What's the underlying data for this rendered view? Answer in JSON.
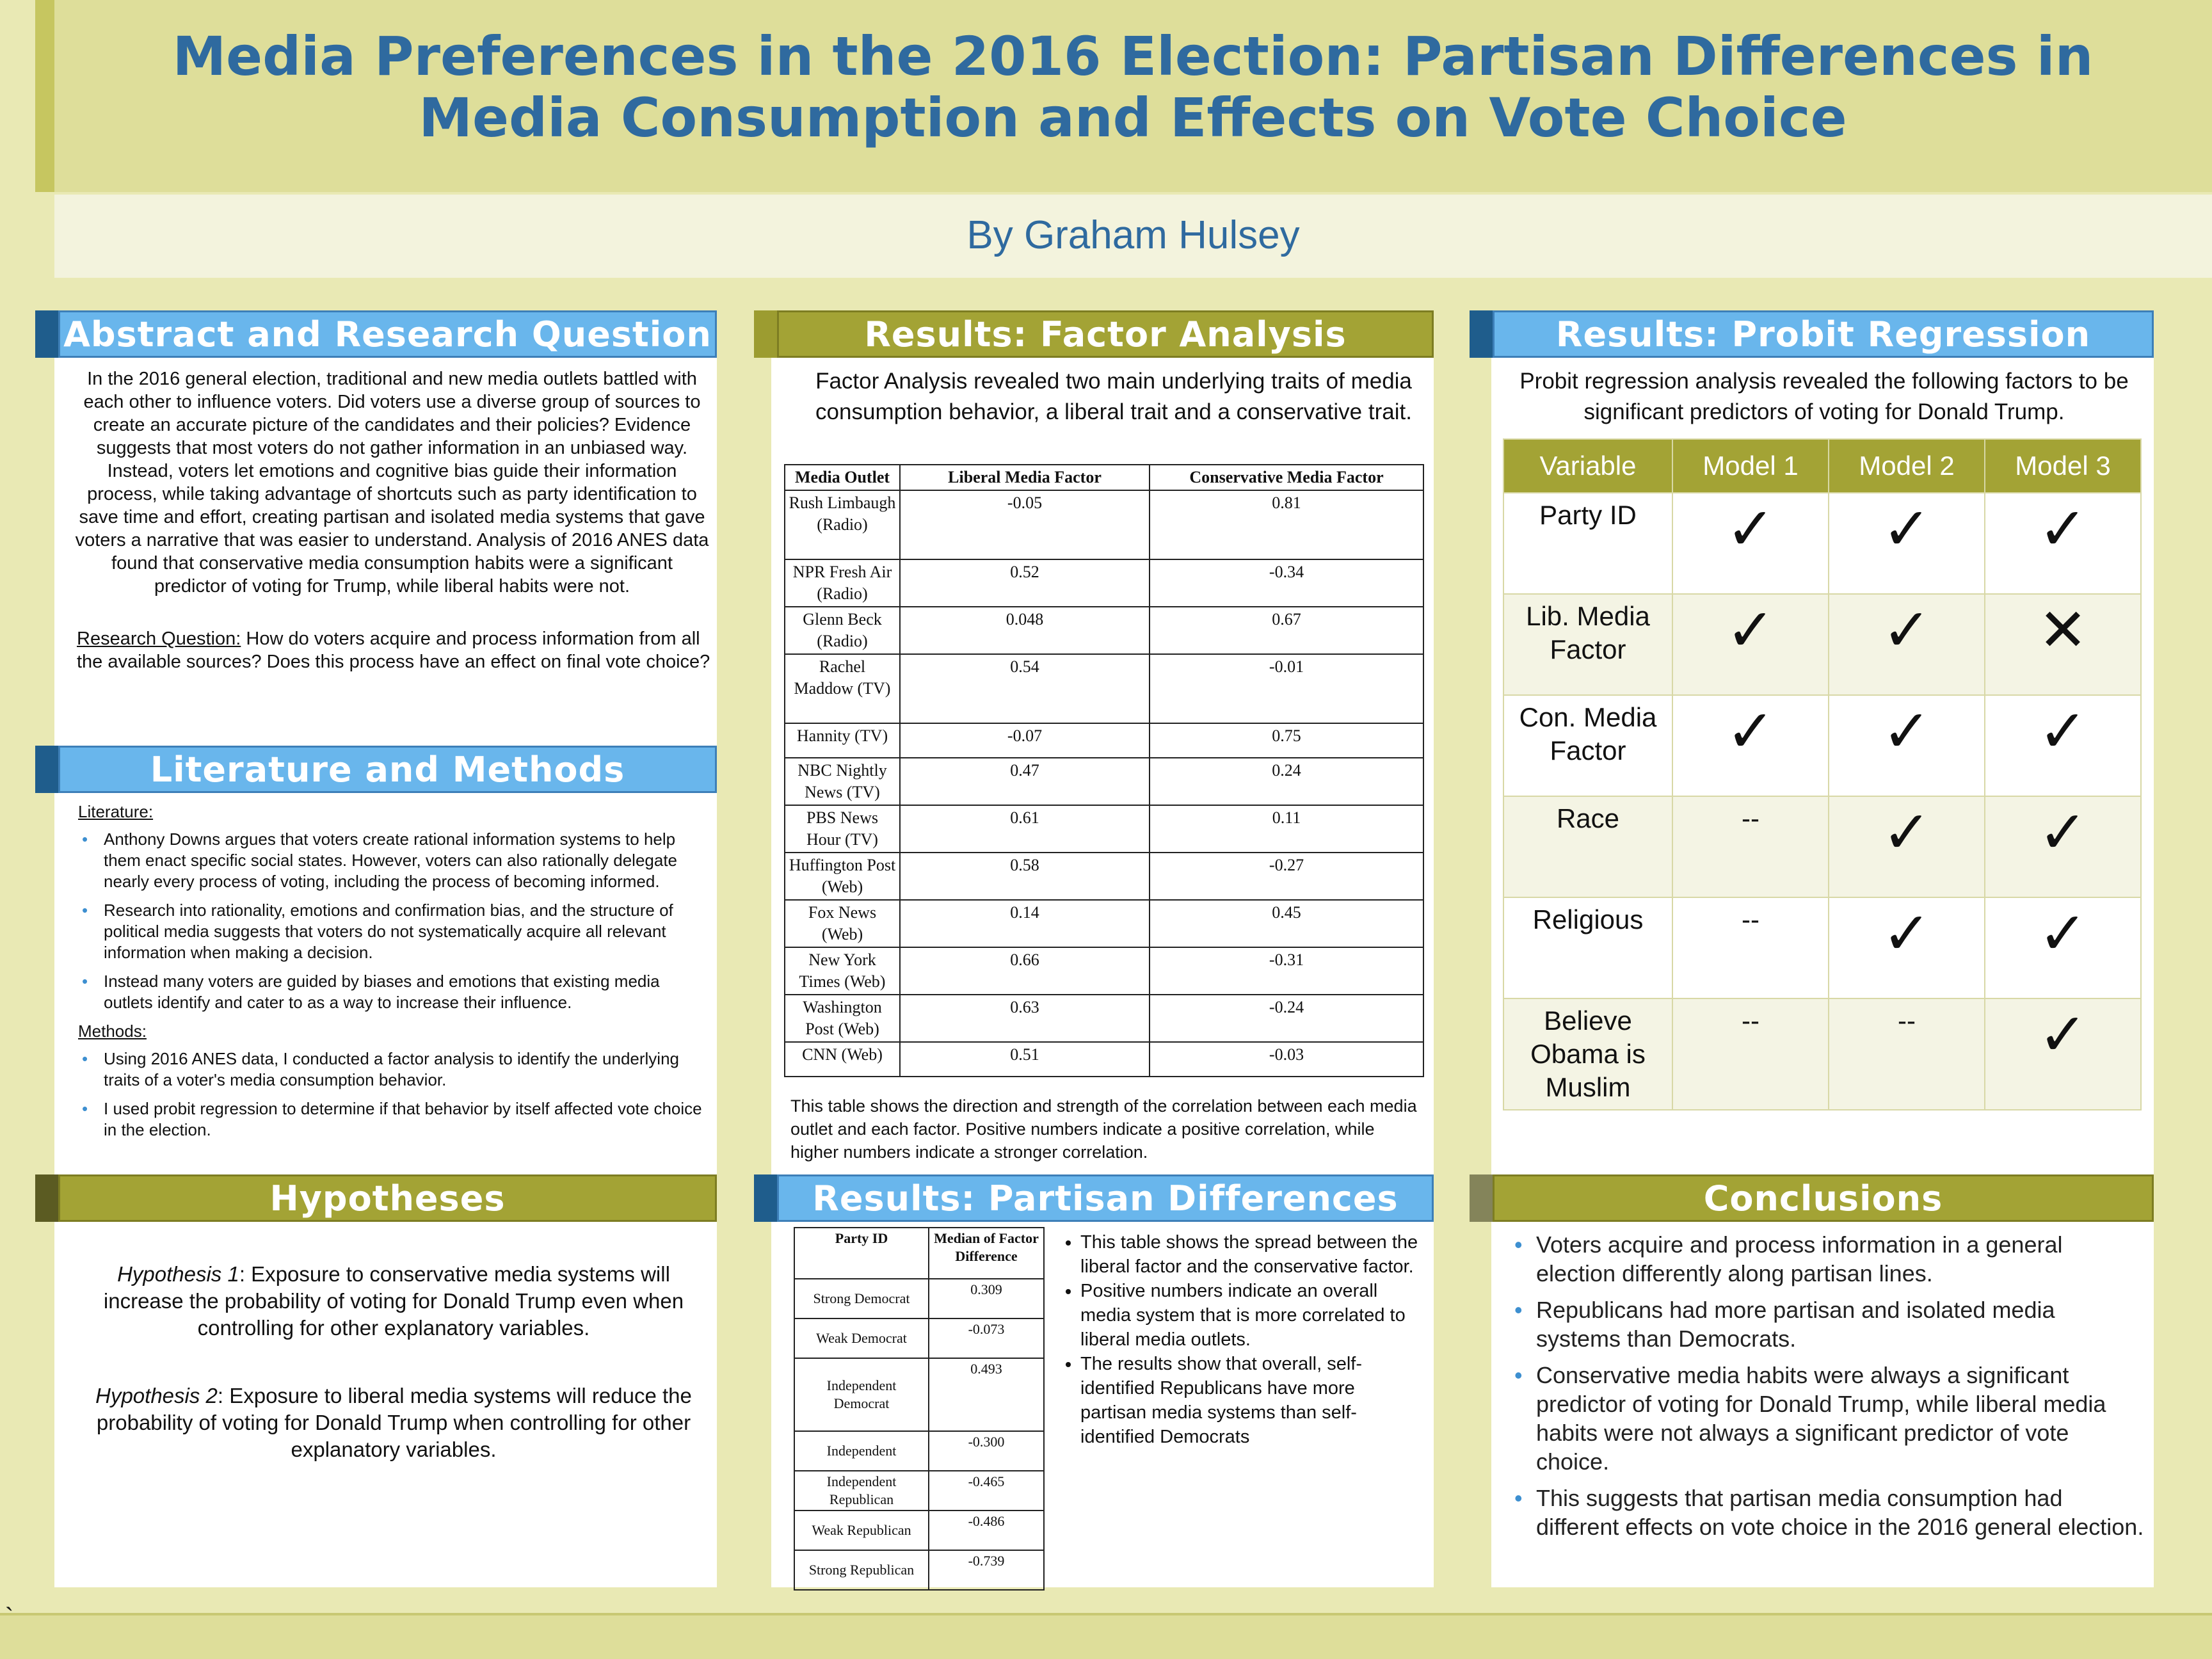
{
  "title": {
    "line1": "Media Preferences in the 2016 Election: Partisan Differences in",
    "line2": "Media Consumption and Effects on Vote Choice"
  },
  "author": "By Graham Hulsey",
  "abstract": {
    "header": "Abstract and Research Question",
    "text": "In the 2016 general election, traditional and new media outlets battled with each other to influence voters. Did voters use a diverse group of sources to create an accurate picture of the candidates and their policies? Evidence suggests that most voters do not gather information in an unbiased way. Instead, voters let emotions and cognitive bias guide their information process, while taking advantage of shortcuts such as party identification to save time and effort, creating partisan and isolated media systems that gave voters a narrative that was easier to understand. Analysis of 2016 ANES data found that conservative media consumption habits were a significant predictor of voting for Trump, while liberal habits were not.",
    "rq_label": "Research Question:",
    "rq_text": " How do voters acquire and process information from all the available sources? Does this process have an effect on final vote choice?"
  },
  "literature": {
    "header": "Literature and Methods",
    "lit_label": "Literature:",
    "lit_items": [
      "Anthony Downs argues that voters create rational information systems to help them enact specific social states. However, voters can also rationally delegate nearly every process of voting, including the process of becoming informed.",
      "Research into rationality, emotions and confirmation bias, and the structure of political media suggests that voters do not systematically acquire all relevant information when making a decision.",
      "Instead many voters are guided by biases and emotions that existing media outlets identify and cater to as a way to increase their influence."
    ],
    "methods_label": "Methods:",
    "methods_items": [
      "Using 2016 ANES data, I conducted a factor analysis to identify the underlying traits of a voter's media consumption behavior.",
      "I used probit regression to determine if that behavior by itself affected vote choice in the election."
    ]
  },
  "hypotheses": {
    "header": "Hypotheses",
    "h1_label": "Hypothesis 1",
    "h1_text": ": Exposure to conservative media systems will increase the probability of voting for Donald Trump even when controlling for other explanatory variables.",
    "h2_label": "Hypothesis 2",
    "h2_text": ": Exposure to liberal media systems will reduce the probability of voting for Donald Trump when controlling for other explanatory variables."
  },
  "factor": {
    "header": "Results: Factor Analysis",
    "intro": "Factor Analysis revealed two main underlying traits of media consumption behavior, a liberal trait and a conservative trait.",
    "columns": [
      "Media Outlet",
      "Liberal Media Factor",
      "Conservative Media Factor"
    ],
    "rows": [
      {
        "outlet": "Rush Limbaugh (Radio)",
        "lib": "-0.05",
        "con": "0.81"
      },
      {
        "outlet": "NPR Fresh Air (Radio)",
        "lib": "0.52",
        "con": "-0.34"
      },
      {
        "outlet": "Glenn Beck (Radio)",
        "lib": "0.048",
        "con": "0.67"
      },
      {
        "outlet": "Rachel Maddow (TV)",
        "lib": "0.54",
        "con": "-0.01"
      },
      {
        "outlet": "Hannity (TV)",
        "lib": "-0.07",
        "con": "0.75"
      },
      {
        "outlet": "NBC Nightly News (TV)",
        "lib": "0.47",
        "con": "0.24"
      },
      {
        "outlet": "PBS News Hour (TV)",
        "lib": "0.61",
        "con": "0.11"
      },
      {
        "outlet": "Huffington Post (Web)",
        "lib": "0.58",
        "con": "-0.27"
      },
      {
        "outlet": "Fox News (Web)",
        "lib": "0.14",
        "con": "0.45"
      },
      {
        "outlet": "New York Times (Web)",
        "lib": "0.66",
        "con": "-0.31"
      },
      {
        "outlet": "Washington Post (Web)",
        "lib": "0.63",
        "con": "-0.24"
      },
      {
        "outlet": "CNN (Web)",
        "lib": "0.51",
        "con": "-0.03"
      }
    ],
    "caption": "This table shows the direction and strength of the correlation between each media outlet and each factor. Positive numbers indicate a positive correlation, while higher numbers indicate a stronger correlation."
  },
  "partisan": {
    "header": "Results: Partisan Differences",
    "columns": [
      "Party ID",
      "Median of Factor Difference"
    ],
    "rows": [
      {
        "party": "Strong Democrat",
        "value": "0.309"
      },
      {
        "party": "Weak Democrat",
        "value": "-0.073"
      },
      {
        "party": "Independent Democrat",
        "value": "0.493"
      },
      {
        "party": "Independent",
        "value": "-0.300"
      },
      {
        "party": "Independent Republican",
        "value": "-0.465"
      },
      {
        "party": "Weak Republican",
        "value": "-0.486"
      },
      {
        "party": "Strong Republican",
        "value": "-0.739"
      }
    ],
    "bullets": [
      "This table shows the spread between the liberal factor and the conservative factor.",
      "Positive numbers indicate an overall media system that is more correlated to liberal media outlets.",
      "The results show that overall, self-identified Republicans have more partisan media systems than self-identified Democrats"
    ]
  },
  "probit": {
    "header": "Results: Probit Regression",
    "intro": "Probit regression analysis revealed the following factors to be significant predictors of voting for Donald Trump.",
    "columns": [
      "Variable",
      "Model 1",
      "Model 2",
      "Model 3"
    ],
    "check_symbol": "✓",
    "cross_symbol": "✕",
    "rows": [
      {
        "variable": "Party ID",
        "m1": "✓",
        "m2": "✓",
        "m3": "✓"
      },
      {
        "variable": "Lib. Media Factor",
        "m1": "✓",
        "m2": "✓",
        "m3": "✕"
      },
      {
        "variable": "Con. Media Factor",
        "m1": "✓",
        "m2": "✓",
        "m3": "✓"
      },
      {
        "variable": "Race",
        "m1": "--",
        "m2": "✓",
        "m3": "✓"
      },
      {
        "variable": "Religious",
        "m1": "--",
        "m2": "✓",
        "m3": "✓"
      },
      {
        "variable": "Believe Obama is Muslim",
        "m1": "--",
        "m2": "--",
        "m3": "✓"
      }
    ]
  },
  "conclusions": {
    "header": "Conclusions",
    "items": [
      "Voters acquire and process information in a general election differently along partisan lines.",
      "Republicans had more partisan and isolated media systems than Democrats.",
      "Conservative media habits were always a significant predictor of voting for Donald Trump, while liberal media habits were not always a significant predictor of vote choice.",
      "This suggests that partisan media consumption had different effects on vote choice in the 2016 general election."
    ]
  },
  "footer_mark": "`",
  "colors": {
    "title_blue": "#2f6a9f",
    "header_blue": "#69b6ec",
    "header_olive": "#a3a335",
    "background": "#e9e9b4"
  }
}
